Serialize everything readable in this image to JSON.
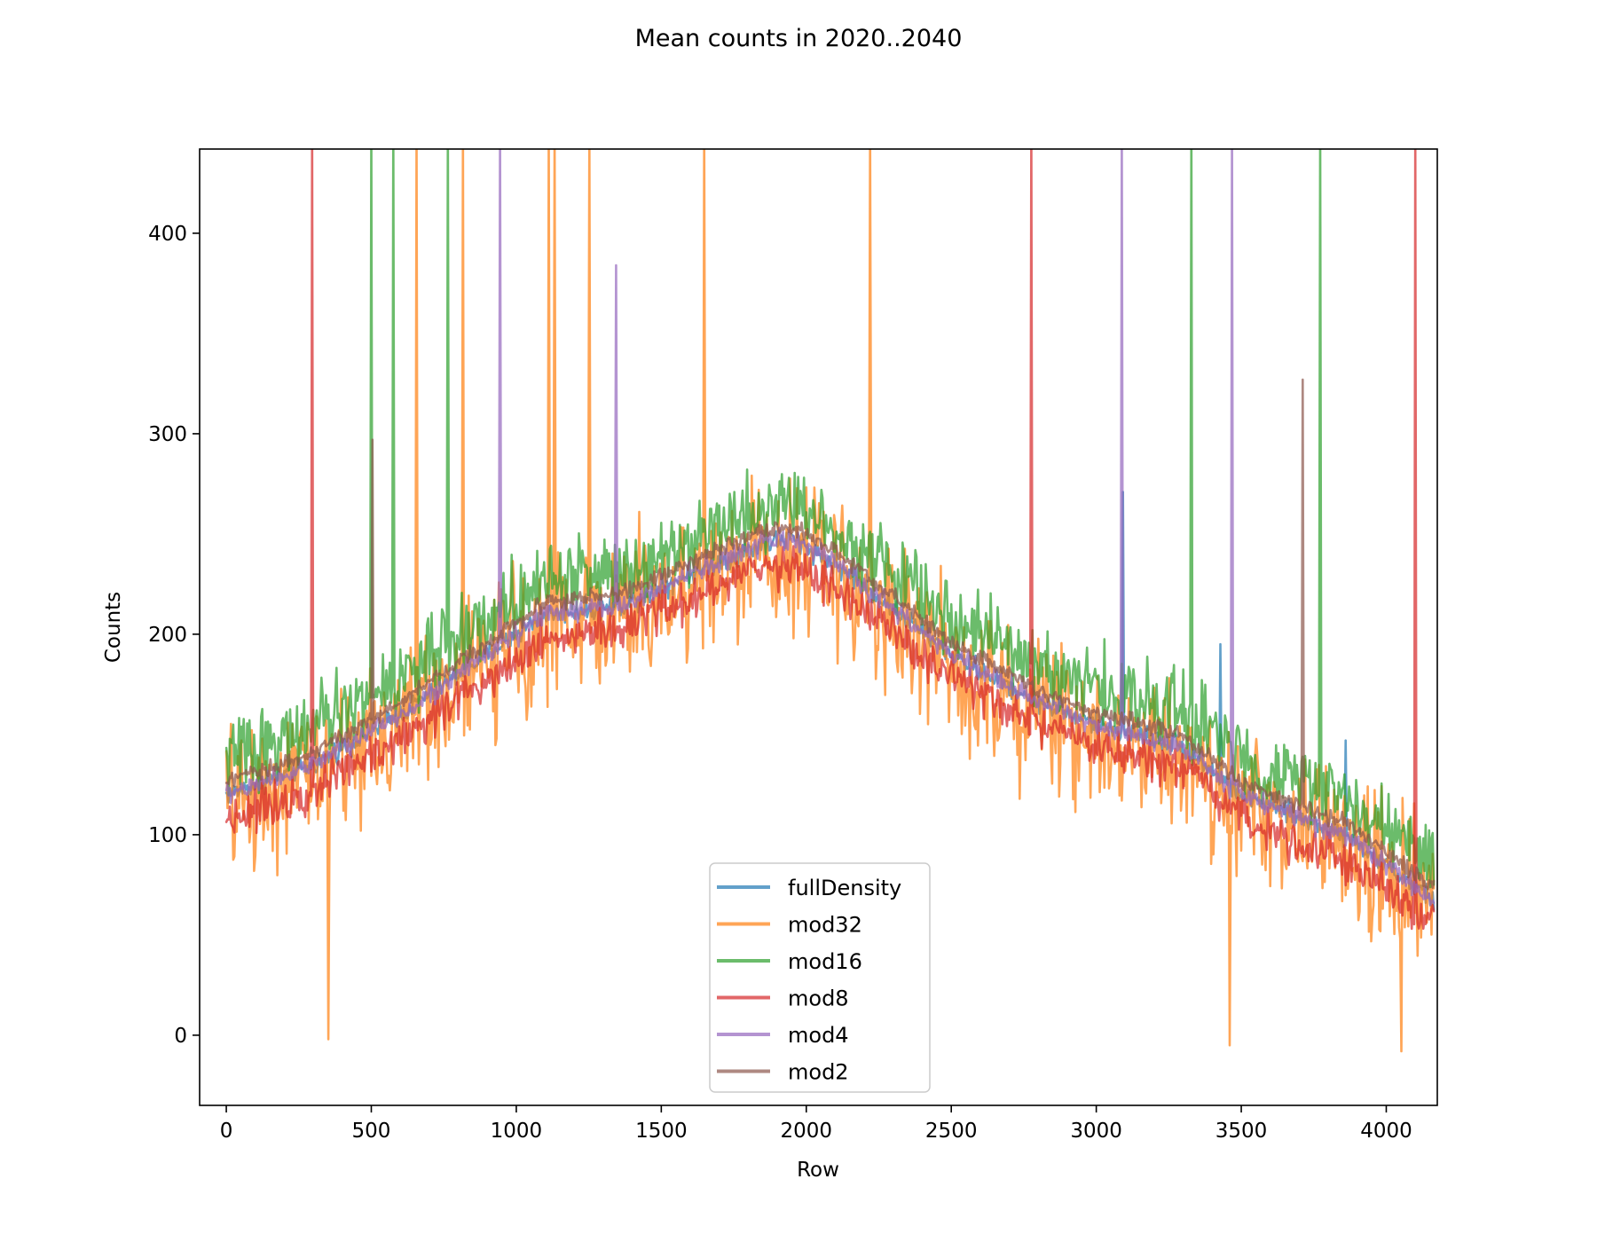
{
  "chart_data": {
    "type": "line",
    "title": "Mean counts in 2020..2040",
    "xlabel": "Row",
    "ylabel": "Counts",
    "xlim": [
      -92,
      4176
    ],
    "ylim": [
      -35,
      442
    ],
    "xticks": [
      0,
      500,
      1000,
      1500,
      2000,
      2500,
      3000,
      3500,
      4000
    ],
    "xtick_labels": [
      "0",
      "500",
      "1000",
      "1500",
      "2000",
      "2500",
      "3000",
      "3500",
      "4000"
    ],
    "yticks": [
      0,
      100,
      200,
      300,
      400
    ],
    "ytick_labels": [
      "0",
      "100",
      "200",
      "300",
      "400"
    ],
    "grid": false,
    "legend_position": "lower-center",
    "n_rows": 4166,
    "series": [
      {
        "name": "fullDensity",
        "color": "#1f77b4",
        "alpha": 0.7,
        "trend": [
          [
            0,
            120
          ],
          [
            300,
            135
          ],
          [
            600,
            160
          ],
          [
            900,
            190
          ],
          [
            1100,
            210
          ],
          [
            1360,
            214
          ],
          [
            1600,
            230
          ],
          [
            1850,
            245
          ],
          [
            1950,
            248
          ],
          [
            2100,
            235
          ],
          [
            2280,
            215
          ],
          [
            2500,
            190
          ],
          [
            2790,
            167
          ],
          [
            3000,
            155
          ],
          [
            3290,
            145
          ],
          [
            3500,
            120
          ],
          [
            3860,
            100
          ],
          [
            4166,
            67
          ]
        ],
        "trend_offset": 0,
        "noise": 8,
        "spikes": [
          [
            3090,
            271
          ],
          [
            3426,
            195
          ],
          [
            3858,
            147
          ]
        ]
      },
      {
        "name": "mod32",
        "color": "#ff7f0e",
        "alpha": 0.7,
        "trend": [
          [
            0,
            120
          ],
          [
            300,
            135
          ],
          [
            600,
            160
          ],
          [
            900,
            190
          ],
          [
            1100,
            210
          ],
          [
            1360,
            214
          ],
          [
            1600,
            230
          ],
          [
            1850,
            245
          ],
          [
            1950,
            248
          ],
          [
            2100,
            235
          ],
          [
            2280,
            215
          ],
          [
            2500,
            190
          ],
          [
            2790,
            167
          ],
          [
            3000,
            155
          ],
          [
            3290,
            145
          ],
          [
            3500,
            120
          ],
          [
            3860,
            100
          ],
          [
            4166,
            67
          ]
        ],
        "trend_offset": -5,
        "noise": 55,
        "spikes": [
          [
            655,
            450
          ],
          [
            817,
            450
          ],
          [
            1110,
            450
          ],
          [
            1133,
            450
          ],
          [
            1253,
            450
          ],
          [
            1647,
            450
          ],
          [
            2220,
            450
          ],
          [
            352,
            -2
          ],
          [
            3460,
            -5
          ],
          [
            4050,
            -8
          ]
        ]
      },
      {
        "name": "mod16",
        "color": "#2ca02c",
        "alpha": 0.7,
        "trend": [
          [
            0,
            120
          ],
          [
            300,
            135
          ],
          [
            600,
            160
          ],
          [
            900,
            190
          ],
          [
            1100,
            210
          ],
          [
            1360,
            214
          ],
          [
            1600,
            230
          ],
          [
            1850,
            245
          ],
          [
            1950,
            248
          ],
          [
            2100,
            235
          ],
          [
            2280,
            215
          ],
          [
            2500,
            190
          ],
          [
            2790,
            167
          ],
          [
            3000,
            155
          ],
          [
            3290,
            145
          ],
          [
            3500,
            120
          ],
          [
            3860,
            100
          ],
          [
            4166,
            67
          ]
        ],
        "trend_offset": 18,
        "noise": 28,
        "spikes": [
          [
            500,
            450
          ],
          [
            576,
            450
          ],
          [
            765,
            450
          ],
          [
            3329,
            450
          ],
          [
            3772,
            450
          ]
        ]
      },
      {
        "name": "mod8",
        "color": "#d62728",
        "alpha": 0.7,
        "trend": [
          [
            0,
            120
          ],
          [
            300,
            135
          ],
          [
            600,
            160
          ],
          [
            900,
            190
          ],
          [
            1100,
            210
          ],
          [
            1360,
            214
          ],
          [
            1600,
            230
          ],
          [
            1850,
            245
          ],
          [
            1950,
            248
          ],
          [
            2100,
            235
          ],
          [
            2280,
            215
          ],
          [
            2500,
            190
          ],
          [
            2790,
            167
          ],
          [
            3000,
            155
          ],
          [
            3290,
            145
          ],
          [
            3500,
            120
          ],
          [
            3860,
            100
          ],
          [
            4166,
            67
          ]
        ],
        "trend_offset": -12,
        "noise": 16,
        "spikes": [
          [
            297,
            450
          ],
          [
            2775,
            450
          ],
          [
            4100,
            450
          ]
        ]
      },
      {
        "name": "mod4",
        "color": "#9467bd",
        "alpha": 0.7,
        "trend": [
          [
            0,
            120
          ],
          [
            300,
            135
          ],
          [
            600,
            160
          ],
          [
            900,
            190
          ],
          [
            1100,
            210
          ],
          [
            1360,
            214
          ],
          [
            1600,
            230
          ],
          [
            1850,
            245
          ],
          [
            1950,
            248
          ],
          [
            2100,
            235
          ],
          [
            2280,
            215
          ],
          [
            2500,
            190
          ],
          [
            2790,
            167
          ],
          [
            3000,
            155
          ],
          [
            3290,
            145
          ],
          [
            3500,
            120
          ],
          [
            3860,
            100
          ],
          [
            4166,
            67
          ]
        ],
        "trend_offset": 0,
        "noise": 8,
        "spikes": [
          [
            945,
            450
          ],
          [
            1345,
            384
          ],
          [
            3087,
            450
          ],
          [
            3467,
            450
          ]
        ]
      },
      {
        "name": "mod2",
        "color": "#8c564b",
        "alpha": 0.7,
        "trend": [
          [
            0,
            120
          ],
          [
            300,
            135
          ],
          [
            600,
            160
          ],
          [
            900,
            190
          ],
          [
            1100,
            210
          ],
          [
            1360,
            214
          ],
          [
            1600,
            230
          ],
          [
            1850,
            245
          ],
          [
            1950,
            248
          ],
          [
            2100,
            235
          ],
          [
            2280,
            215
          ],
          [
            2500,
            190
          ],
          [
            2790,
            167
          ],
          [
            3000,
            155
          ],
          [
            3290,
            145
          ],
          [
            3500,
            120
          ],
          [
            3860,
            100
          ],
          [
            4166,
            67
          ]
        ],
        "trend_offset": 6,
        "noise": 6,
        "spikes": [
          [
            505,
            297
          ],
          [
            3712,
            327
          ]
        ]
      }
    ]
  }
}
